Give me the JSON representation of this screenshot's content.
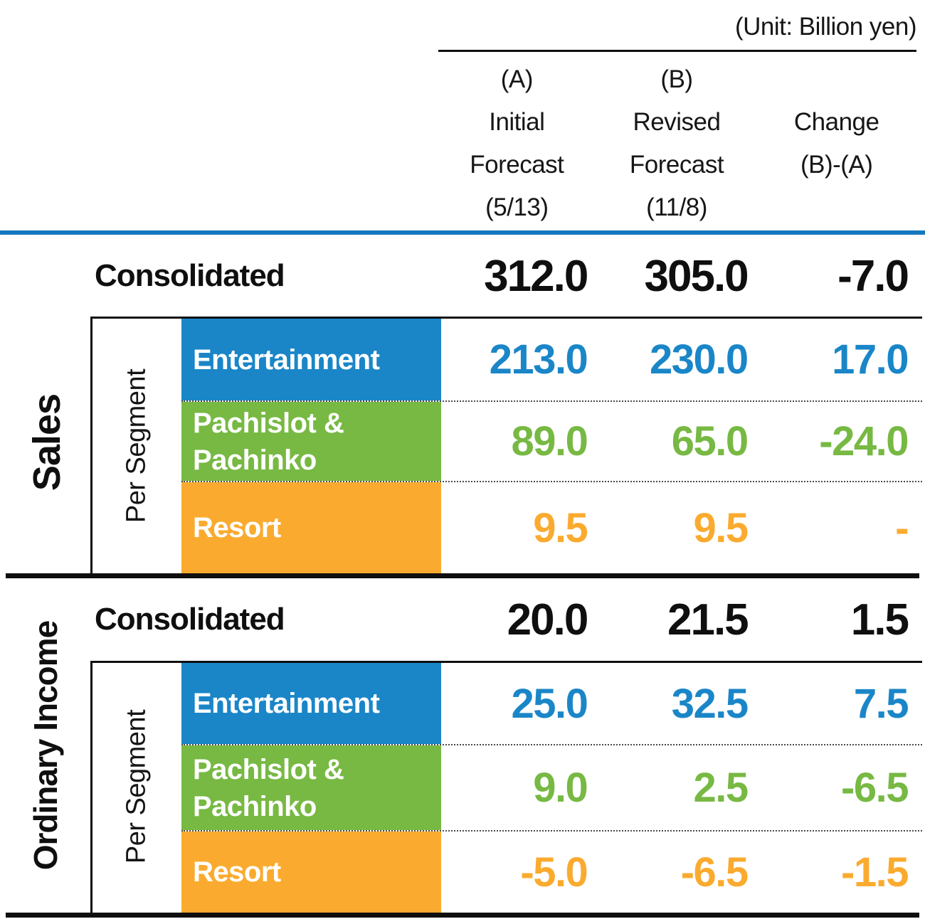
{
  "unit_label": "(Unit: Billion yen)",
  "header": {
    "col_a": [
      "(A)",
      "Initial",
      "Forecast",
      "(5/13)"
    ],
    "col_b": [
      "(B)",
      "Revised",
      "Forecast",
      "(11/8)"
    ],
    "col_change": [
      "",
      "Change",
      "(B)-(A)",
      ""
    ]
  },
  "colors": {
    "ink": "#0f0f0f",
    "rule-blue": "#1478BE",
    "blue": "#1A86C8",
    "green": "#77B943",
    "orange": "#FAAB2F"
  },
  "sections": [
    {
      "title": "Sales",
      "per_segment_label": "Per Segment",
      "consolidated": {
        "label": "Consolidated",
        "a": "312.0",
        "b": "305.0",
        "change": "-7.0"
      },
      "segments": [
        {
          "name": "Entertainment",
          "label": "Entertainment",
          "color": "#1A86C8",
          "a": "213.0",
          "b": "230.0",
          "change": "17.0"
        },
        {
          "name": "Pachislot & Pachinko",
          "label": "Pachislot &\nPachinko",
          "color": "#77B943",
          "a": "89.0",
          "b": "65.0",
          "change": "-24.0"
        },
        {
          "name": "Resort",
          "label": "Resort",
          "color": "#FAAB2F",
          "a": "9.5",
          "b": "9.5",
          "change": "-"
        }
      ]
    },
    {
      "title": "Ordinary Income",
      "per_segment_label": "Per Segment",
      "consolidated": {
        "label": "Consolidated",
        "a": "20.0",
        "b": "21.5",
        "change": "1.5"
      },
      "segments": [
        {
          "name": "Entertainment",
          "label": "Entertainment",
          "color": "#1A86C8",
          "a": "25.0",
          "b": "32.5",
          "change": "7.5"
        },
        {
          "name": "Pachislot & Pachinko",
          "label": "Pachislot &\nPachinko",
          "color": "#77B943",
          "a": "9.0",
          "b": "2.5",
          "change": "-6.5"
        },
        {
          "name": "Resort",
          "label": "Resort",
          "color": "#FAAB2F",
          "a": "-5.0",
          "b": "-6.5",
          "change": "-1.5"
        }
      ]
    }
  ]
}
